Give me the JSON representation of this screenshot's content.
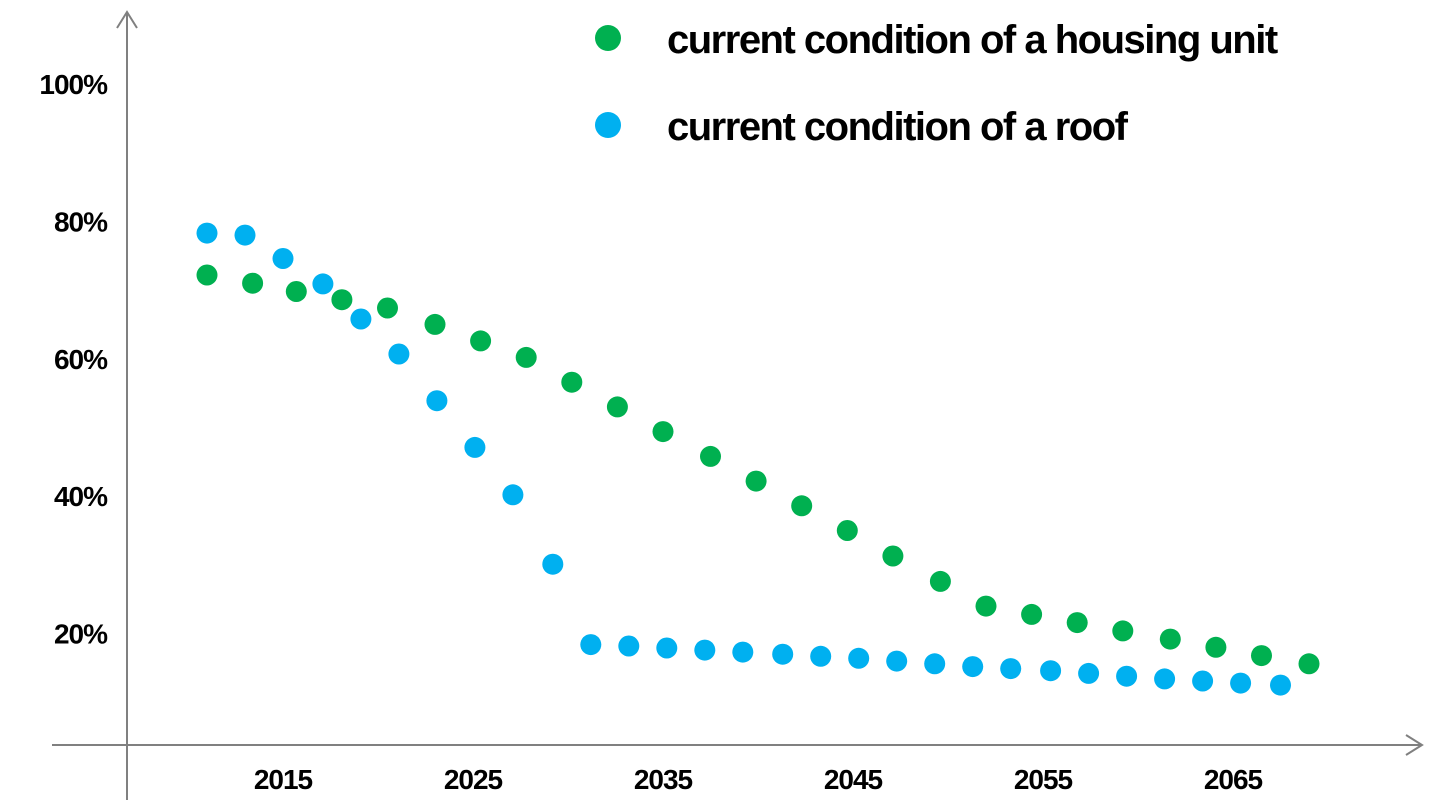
{
  "chart_data": {
    "type": "scatter",
    "title": "",
    "xlabel": "",
    "ylabel": "",
    "xlim": [
      2007.5,
      2073.0
    ],
    "ylim": [
      0,
      100
    ],
    "x_ticks": [
      2015,
      2025,
      2035,
      2045,
      2055,
      2065
    ],
    "x_tick_labels": [
      "2015",
      "2025",
      "2035",
      "2045",
      "2055",
      "2065"
    ],
    "y_ticks": [
      20,
      40,
      60,
      80,
      100
    ],
    "y_tick_labels": [
      "20%",
      "40%",
      "60%",
      "80%",
      "100%"
    ],
    "grid": false,
    "legend_position": "top-right",
    "series": [
      {
        "name": "current condition of a housing unit",
        "color": "#00b050",
        "points": [
          [
            2011.0,
            72.2
          ],
          [
            2013.4,
            71.0
          ],
          [
            2015.7,
            69.8
          ],
          [
            2018.1,
            68.6
          ],
          [
            2020.5,
            67.4
          ],
          [
            2023.0,
            65.0
          ],
          [
            2025.4,
            62.6
          ],
          [
            2027.8,
            60.2
          ],
          [
            2030.2,
            56.6
          ],
          [
            2032.6,
            53.0
          ],
          [
            2035.0,
            49.4
          ],
          [
            2037.5,
            45.8
          ],
          [
            2039.9,
            42.2
          ],
          [
            2042.3,
            38.6
          ],
          [
            2044.7,
            35.0
          ],
          [
            2047.1,
            31.3
          ],
          [
            2049.6,
            27.6
          ],
          [
            2052.0,
            24.0
          ],
          [
            2054.4,
            22.8
          ],
          [
            2056.8,
            21.6
          ],
          [
            2059.2,
            20.4
          ],
          [
            2061.7,
            19.2
          ],
          [
            2064.1,
            18.0
          ],
          [
            2066.5,
            16.8
          ],
          [
            2069.0,
            15.6
          ]
        ]
      },
      {
        "name": "current condition of a roof",
        "color": "#00b0f0",
        "points": [
          [
            2011.0,
            78.3
          ],
          [
            2013.0,
            78.0
          ],
          [
            2015.0,
            74.6
          ],
          [
            2017.1,
            70.9
          ],
          [
            2019.1,
            65.8
          ],
          [
            2021.1,
            60.7
          ],
          [
            2023.1,
            53.9
          ],
          [
            2025.1,
            47.1
          ],
          [
            2027.1,
            40.2
          ],
          [
            2029.2,
            30.1
          ],
          [
            2031.2,
            18.4
          ],
          [
            2033.2,
            18.2
          ],
          [
            2035.2,
            17.9
          ],
          [
            2037.2,
            17.6
          ],
          [
            2039.2,
            17.3
          ],
          [
            2041.3,
            17.0
          ],
          [
            2043.3,
            16.7
          ],
          [
            2045.3,
            16.4
          ],
          [
            2047.3,
            16.0
          ],
          [
            2049.3,
            15.6
          ],
          [
            2051.3,
            15.2
          ],
          [
            2053.3,
            14.9
          ],
          [
            2055.4,
            14.6
          ],
          [
            2057.4,
            14.2
          ],
          [
            2059.4,
            13.8
          ],
          [
            2061.4,
            13.4
          ],
          [
            2063.4,
            13.1
          ],
          [
            2065.4,
            12.8
          ],
          [
            2067.5,
            12.5
          ]
        ]
      }
    ]
  }
}
